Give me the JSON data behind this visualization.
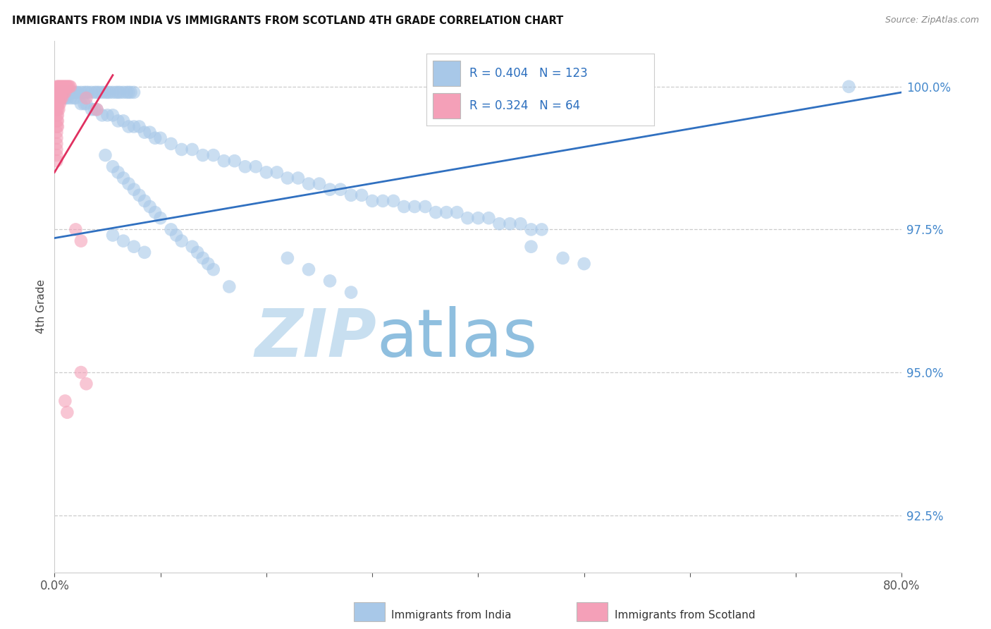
{
  "title": "IMMIGRANTS FROM INDIA VS IMMIGRANTS FROM SCOTLAND 4TH GRADE CORRELATION CHART",
  "source": "Source: ZipAtlas.com",
  "ylabel": "4th Grade",
  "yaxis_labels": [
    "100.0%",
    "97.5%",
    "95.0%",
    "92.5%"
  ],
  "yaxis_values": [
    1.0,
    0.975,
    0.95,
    0.925
  ],
  "xmin": 0.0,
  "xmax": 0.8,
  "ymin": 0.915,
  "ymax": 1.008,
  "legend_blue_R": "R = 0.404",
  "legend_blue_N": "N = 123",
  "legend_pink_R": "R = 0.324",
  "legend_pink_N": "N = 64",
  "legend_label_blue": "Immigrants from India",
  "legend_label_pink": "Immigrants from Scotland",
  "blue_color": "#a8c8e8",
  "pink_color": "#f4a0b8",
  "blue_line_color": "#3070c0",
  "pink_line_color": "#e03060",
  "legend_text_color": "#2c6fbe",
  "watermark_zip": "ZIP",
  "watermark_atlas": "atlas",
  "watermark_color_zip": "#c8dff0",
  "watermark_color_atlas": "#8fbfdf",
  "right_axis_color": "#4488cc",
  "blue_scatter_x": [
    0.005,
    0.008,
    0.01,
    0.012,
    0.014,
    0.016,
    0.018,
    0.02,
    0.022,
    0.025,
    0.028,
    0.03,
    0.032,
    0.035,
    0.038,
    0.04,
    0.042,
    0.045,
    0.048,
    0.05,
    0.052,
    0.055,
    0.058,
    0.06,
    0.062,
    0.065,
    0.068,
    0.07,
    0.072,
    0.075,
    0.008,
    0.01,
    0.012,
    0.015,
    0.018,
    0.02,
    0.025,
    0.028,
    0.03,
    0.035,
    0.038,
    0.04,
    0.045,
    0.05,
    0.055,
    0.06,
    0.065,
    0.07,
    0.075,
    0.08,
    0.085,
    0.09,
    0.095,
    0.1,
    0.11,
    0.12,
    0.13,
    0.14,
    0.15,
    0.16,
    0.17,
    0.18,
    0.19,
    0.2,
    0.21,
    0.22,
    0.23,
    0.24,
    0.25,
    0.26,
    0.27,
    0.28,
    0.29,
    0.3,
    0.31,
    0.32,
    0.33,
    0.34,
    0.35,
    0.36,
    0.37,
    0.38,
    0.39,
    0.4,
    0.41,
    0.42,
    0.43,
    0.44,
    0.45,
    0.46,
    0.048,
    0.055,
    0.06,
    0.065,
    0.07,
    0.075,
    0.08,
    0.085,
    0.09,
    0.095,
    0.1,
    0.11,
    0.115,
    0.12,
    0.13,
    0.135,
    0.14,
    0.145,
    0.15,
    0.165,
    0.055,
    0.065,
    0.075,
    0.085,
    0.22,
    0.24,
    0.26,
    0.28,
    0.45,
    0.48,
    0.5,
    0.75
  ],
  "blue_scatter_y": [
    0.999,
    0.999,
    0.999,
    0.999,
    0.999,
    0.999,
    0.999,
    0.999,
    0.999,
    0.999,
    0.999,
    0.999,
    0.999,
    0.999,
    0.999,
    0.999,
    0.999,
    0.999,
    0.999,
    0.999,
    0.999,
    0.999,
    0.999,
    0.999,
    0.999,
    0.999,
    0.999,
    0.999,
    0.999,
    0.999,
    0.998,
    0.998,
    0.998,
    0.998,
    0.998,
    0.998,
    0.997,
    0.997,
    0.997,
    0.996,
    0.996,
    0.996,
    0.995,
    0.995,
    0.995,
    0.994,
    0.994,
    0.993,
    0.993,
    0.993,
    0.992,
    0.992,
    0.991,
    0.991,
    0.99,
    0.989,
    0.989,
    0.988,
    0.988,
    0.987,
    0.987,
    0.986,
    0.986,
    0.985,
    0.985,
    0.984,
    0.984,
    0.983,
    0.983,
    0.982,
    0.982,
    0.981,
    0.981,
    0.98,
    0.98,
    0.98,
    0.979,
    0.979,
    0.979,
    0.978,
    0.978,
    0.978,
    0.977,
    0.977,
    0.977,
    0.976,
    0.976,
    0.976,
    0.975,
    0.975,
    0.988,
    0.986,
    0.985,
    0.984,
    0.983,
    0.982,
    0.981,
    0.98,
    0.979,
    0.978,
    0.977,
    0.975,
    0.974,
    0.973,
    0.972,
    0.971,
    0.97,
    0.969,
    0.968,
    0.965,
    0.974,
    0.973,
    0.972,
    0.971,
    0.97,
    0.968,
    0.966,
    0.964,
    0.972,
    0.97,
    0.969,
    1.0
  ],
  "pink_scatter_x": [
    0.002,
    0.003,
    0.004,
    0.005,
    0.006,
    0.007,
    0.008,
    0.009,
    0.01,
    0.011,
    0.012,
    0.013,
    0.014,
    0.015,
    0.002,
    0.003,
    0.004,
    0.005,
    0.006,
    0.007,
    0.008,
    0.009,
    0.01,
    0.002,
    0.003,
    0.004,
    0.005,
    0.006,
    0.007,
    0.002,
    0.003,
    0.004,
    0.005,
    0.002,
    0.003,
    0.004,
    0.002,
    0.003,
    0.002,
    0.003,
    0.002,
    0.003,
    0.002,
    0.002,
    0.002,
    0.002,
    0.002,
    0.002,
    0.03,
    0.04,
    0.02,
    0.025,
    0.025,
    0.03,
    0.01,
    0.012
  ],
  "pink_scatter_y": [
    1.0,
    1.0,
    1.0,
    1.0,
    1.0,
    1.0,
    1.0,
    1.0,
    1.0,
    1.0,
    1.0,
    1.0,
    1.0,
    1.0,
    0.999,
    0.999,
    0.999,
    0.999,
    0.999,
    0.999,
    0.999,
    0.999,
    0.999,
    0.998,
    0.998,
    0.998,
    0.998,
    0.998,
    0.998,
    0.997,
    0.997,
    0.997,
    0.997,
    0.996,
    0.996,
    0.996,
    0.995,
    0.995,
    0.994,
    0.994,
    0.993,
    0.993,
    0.992,
    0.991,
    0.99,
    0.989,
    0.988,
    0.987,
    0.998,
    0.996,
    0.975,
    0.973,
    0.95,
    0.948,
    0.945,
    0.943
  ],
  "blue_trendline_x": [
    0.0,
    0.8
  ],
  "blue_trendline_y": [
    0.9735,
    0.999
  ],
  "pink_trendline_x": [
    0.0,
    0.055
  ],
  "pink_trendline_y": [
    0.985,
    1.002
  ]
}
